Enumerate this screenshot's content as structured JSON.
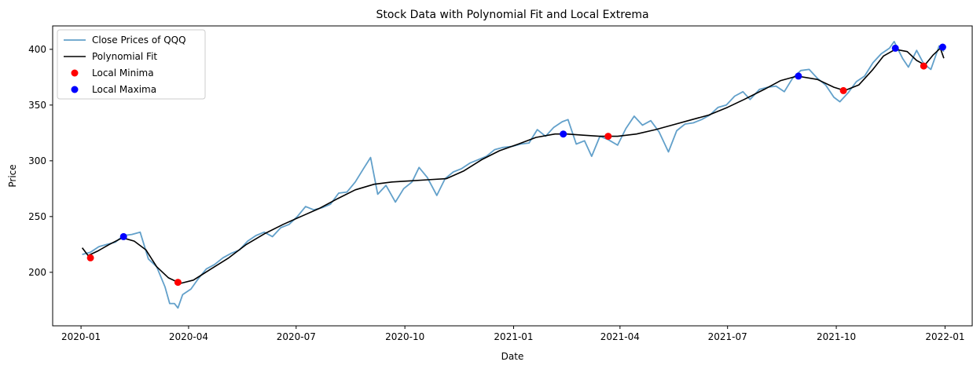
{
  "chart_data": {
    "type": "line",
    "title": "Stock Data with Polynomial Fit and Local Extrema",
    "xlabel": "Date",
    "ylabel": "Price",
    "xlim": [
      "2019-12-08",
      "2022-01-24"
    ],
    "ylim": [
      152,
      421
    ],
    "x_ticks": [
      "2020-01",
      "2020-04",
      "2020-07",
      "2020-10",
      "2021-01",
      "2021-04",
      "2021-07",
      "2021-10",
      "2022-01"
    ],
    "y_ticks": [
      200,
      250,
      300,
      350,
      400
    ],
    "grid": false,
    "legend_position": "top-left",
    "colors": {
      "close": "#1f77b4",
      "fit": "#000000",
      "minima": "#ff0000",
      "maxima": "#0000ff"
    },
    "series": [
      {
        "name": "Close Prices of QQQ",
        "style": "line",
        "points": [
          [
            "2020-01-02",
            216
          ],
          [
            "2020-01-09",
            218
          ],
          [
            "2020-01-16",
            223
          ],
          [
            "2020-01-23",
            225
          ],
          [
            "2020-01-30",
            227
          ],
          [
            "2020-02-06",
            233
          ],
          [
            "2020-02-13",
            234
          ],
          [
            "2020-02-20",
            236
          ],
          [
            "2020-02-27",
            212
          ],
          [
            "2020-03-05",
            205
          ],
          [
            "2020-03-12",
            187
          ],
          [
            "2020-03-16",
            172
          ],
          [
            "2020-03-20",
            172
          ],
          [
            "2020-03-23",
            168
          ],
          [
            "2020-03-27",
            180
          ],
          [
            "2020-04-03",
            185
          ],
          [
            "2020-04-09",
            194
          ],
          [
            "2020-04-16",
            203
          ],
          [
            "2020-04-23",
            207
          ],
          [
            "2020-04-30",
            213
          ],
          [
            "2020-05-07",
            217
          ],
          [
            "2020-05-14",
            220
          ],
          [
            "2020-05-21",
            228
          ],
          [
            "2020-05-28",
            233
          ],
          [
            "2020-06-04",
            236
          ],
          [
            "2020-06-11",
            232
          ],
          [
            "2020-06-18",
            240
          ],
          [
            "2020-06-25",
            243
          ],
          [
            "2020-07-02",
            250
          ],
          [
            "2020-07-09",
            259
          ],
          [
            "2020-07-16",
            256
          ],
          [
            "2020-07-23",
            258
          ],
          [
            "2020-07-30",
            261
          ],
          [
            "2020-08-06",
            271
          ],
          [
            "2020-08-13",
            272
          ],
          [
            "2020-08-20",
            281
          ],
          [
            "2020-08-27",
            293
          ],
          [
            "2020-09-02",
            303
          ],
          [
            "2020-09-08",
            270
          ],
          [
            "2020-09-15",
            278
          ],
          [
            "2020-09-23",
            263
          ],
          [
            "2020-09-30",
            275
          ],
          [
            "2020-10-07",
            281
          ],
          [
            "2020-10-13",
            294
          ],
          [
            "2020-10-20",
            285
          ],
          [
            "2020-10-28",
            269
          ],
          [
            "2020-11-04",
            284
          ],
          [
            "2020-11-11",
            290
          ],
          [
            "2020-11-18",
            293
          ],
          [
            "2020-11-25",
            298
          ],
          [
            "2020-12-02",
            301
          ],
          [
            "2020-12-09",
            304
          ],
          [
            "2020-12-16",
            310
          ],
          [
            "2020-12-23",
            312
          ],
          [
            "2020-12-31",
            313
          ],
          [
            "2021-01-07",
            315
          ],
          [
            "2021-01-14",
            316
          ],
          [
            "2021-01-21",
            328
          ],
          [
            "2021-01-28",
            322
          ],
          [
            "2021-02-04",
            330
          ],
          [
            "2021-02-11",
            335
          ],
          [
            "2021-02-16",
            337
          ],
          [
            "2021-02-23",
            315
          ],
          [
            "2021-03-02",
            318
          ],
          [
            "2021-03-08",
            304
          ],
          [
            "2021-03-15",
            322
          ],
          [
            "2021-03-22",
            319
          ],
          [
            "2021-03-30",
            314
          ],
          [
            "2021-04-06",
            329
          ],
          [
            "2021-04-13",
            340
          ],
          [
            "2021-04-20",
            332
          ],
          [
            "2021-04-27",
            336
          ],
          [
            "2021-05-04",
            326
          ],
          [
            "2021-05-12",
            308
          ],
          [
            "2021-05-19",
            327
          ],
          [
            "2021-05-26",
            333
          ],
          [
            "2021-06-02",
            334
          ],
          [
            "2021-06-09",
            337
          ],
          [
            "2021-06-16",
            341
          ],
          [
            "2021-06-23",
            348
          ],
          [
            "2021-06-30",
            350
          ],
          [
            "2021-07-07",
            358
          ],
          [
            "2021-07-14",
            362
          ],
          [
            "2021-07-20",
            355
          ],
          [
            "2021-07-28",
            364
          ],
          [
            "2021-08-04",
            366
          ],
          [
            "2021-08-11",
            367
          ],
          [
            "2021-08-18",
            362
          ],
          [
            "2021-08-25",
            374
          ],
          [
            "2021-09-01",
            381
          ],
          [
            "2021-09-08",
            382
          ],
          [
            "2021-09-15",
            374
          ],
          [
            "2021-09-22",
            368
          ],
          [
            "2021-09-29",
            357
          ],
          [
            "2021-10-04",
            353
          ],
          [
            "2021-10-11",
            361
          ],
          [
            "2021-10-18",
            371
          ],
          [
            "2021-10-25",
            376
          ],
          [
            "2021-11-01",
            388
          ],
          [
            "2021-11-08",
            396
          ],
          [
            "2021-11-15",
            401
          ],
          [
            "2021-11-19",
            407
          ],
          [
            "2021-11-26",
            392
          ],
          [
            "2021-12-01",
            384
          ],
          [
            "2021-12-08",
            399
          ],
          [
            "2021-12-14",
            387
          ],
          [
            "2021-12-20",
            382
          ],
          [
            "2021-12-27",
            403
          ],
          [
            "2021-12-31",
            398
          ]
        ]
      },
      {
        "name": "Polynomial Fit",
        "style": "line",
        "points": [
          [
            "2020-01-02",
            222
          ],
          [
            "2020-01-07",
            215
          ],
          [
            "2020-01-15",
            219
          ],
          [
            "2020-01-25",
            225
          ],
          [
            "2020-02-05",
            231
          ],
          [
            "2020-02-15",
            228
          ],
          [
            "2020-02-25",
            220
          ],
          [
            "2020-03-05",
            205
          ],
          [
            "2020-03-15",
            195
          ],
          [
            "2020-03-25",
            190
          ],
          [
            "2020-04-05",
            193
          ],
          [
            "2020-04-20",
            203
          ],
          [
            "2020-05-05",
            213
          ],
          [
            "2020-05-20",
            225
          ],
          [
            "2020-06-05",
            235
          ],
          [
            "2020-06-20",
            243
          ],
          [
            "2020-07-05",
            250
          ],
          [
            "2020-07-20",
            257
          ],
          [
            "2020-08-05",
            266
          ],
          [
            "2020-08-20",
            274
          ],
          [
            "2020-09-05",
            279
          ],
          [
            "2020-09-20",
            281
          ],
          [
            "2020-10-05",
            282
          ],
          [
            "2020-10-20",
            283
          ],
          [
            "2020-11-05",
            284
          ],
          [
            "2020-11-20",
            291
          ],
          [
            "2020-12-05",
            301
          ],
          [
            "2020-12-20",
            309
          ],
          [
            "2021-01-05",
            315
          ],
          [
            "2021-01-20",
            321
          ],
          [
            "2021-02-05",
            324
          ],
          [
            "2021-02-15",
            324
          ],
          [
            "2021-03-01",
            323
          ],
          [
            "2021-03-15",
            322
          ],
          [
            "2021-03-30",
            322
          ],
          [
            "2021-04-15",
            324
          ],
          [
            "2021-05-01",
            328
          ],
          [
            "2021-05-15",
            332
          ],
          [
            "2021-06-01",
            337
          ],
          [
            "2021-06-15",
            341
          ],
          [
            "2021-07-01",
            348
          ],
          [
            "2021-07-15",
            355
          ],
          [
            "2021-08-01",
            364
          ],
          [
            "2021-08-15",
            372
          ],
          [
            "2021-08-29",
            376
          ],
          [
            "2021-09-15",
            373
          ],
          [
            "2021-09-29",
            366
          ],
          [
            "2021-10-08",
            363
          ],
          [
            "2021-10-20",
            368
          ],
          [
            "2021-11-01",
            382
          ],
          [
            "2021-11-10",
            394
          ],
          [
            "2021-11-20",
            400
          ],
          [
            "2021-11-30",
            398
          ],
          [
            "2021-12-08",
            390
          ],
          [
            "2021-12-15",
            386
          ],
          [
            "2021-12-22",
            395
          ],
          [
            "2021-12-28",
            401
          ],
          [
            "2021-12-31",
            392
          ]
        ]
      },
      {
        "name": "Local Minima",
        "style": "scatter",
        "points": [
          [
            "2020-01-09",
            213
          ],
          [
            "2020-03-23",
            191
          ],
          [
            "2021-03-22",
            322
          ],
          [
            "2021-10-07",
            363
          ],
          [
            "2021-12-14",
            385
          ]
        ]
      },
      {
        "name": "Local Maxima",
        "style": "scatter",
        "points": [
          [
            "2020-02-06",
            232
          ],
          [
            "2021-02-12",
            324
          ],
          [
            "2021-08-30",
            376
          ],
          [
            "2021-11-20",
            401
          ],
          [
            "2021-12-30",
            402
          ]
        ]
      }
    ]
  }
}
